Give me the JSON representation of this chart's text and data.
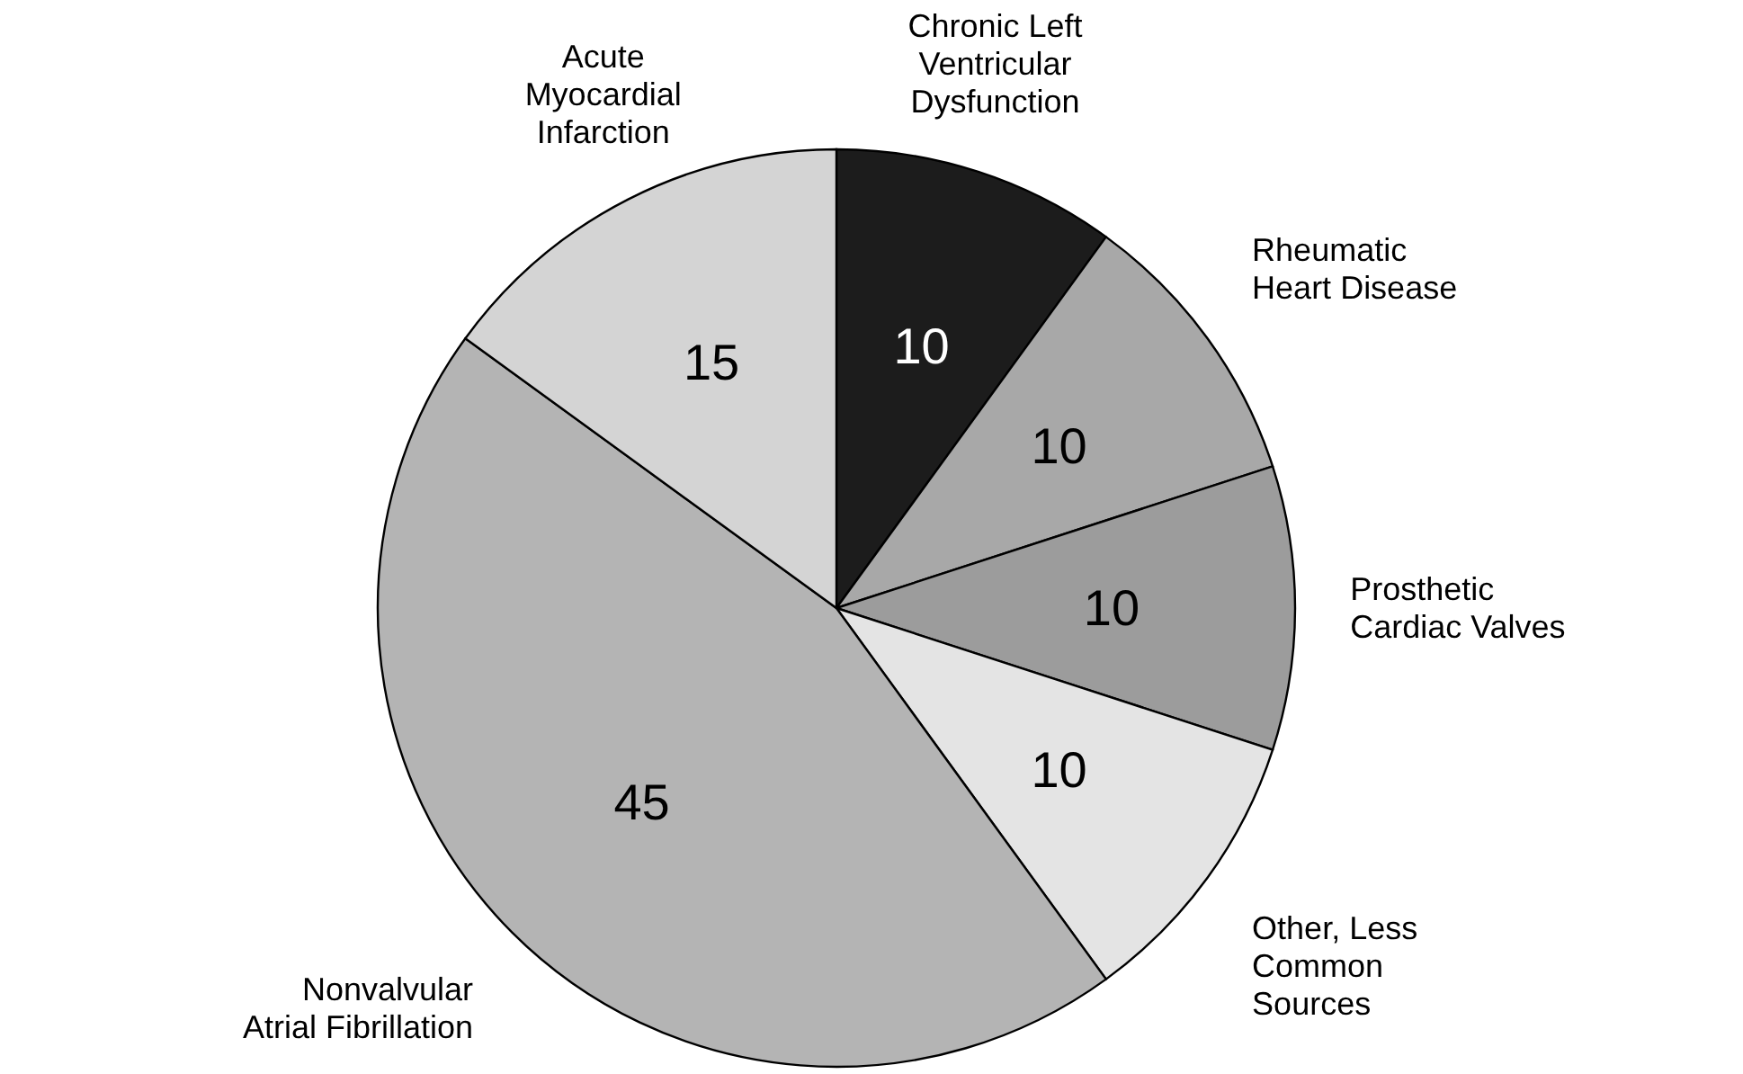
{
  "chart_data": {
    "type": "pie",
    "categories": [
      "Chronic Left Ventricular Dysfunction",
      "Rheumatic Heart Disease",
      "Prosthetic Cardiac Valves",
      "Other, Less Common Sources",
      "Nonvalvular Atrial Fibrillation",
      "Acute Myocardial Infarction"
    ],
    "values": [
      10,
      10,
      10,
      10,
      45,
      15
    ],
    "colors": [
      "#1c1c1c",
      "#a8a8a8",
      "#9c9c9c",
      "#e4e4e4",
      "#b4b4b4",
      "#d4d4d4"
    ],
    "data_labels": true
  }
}
